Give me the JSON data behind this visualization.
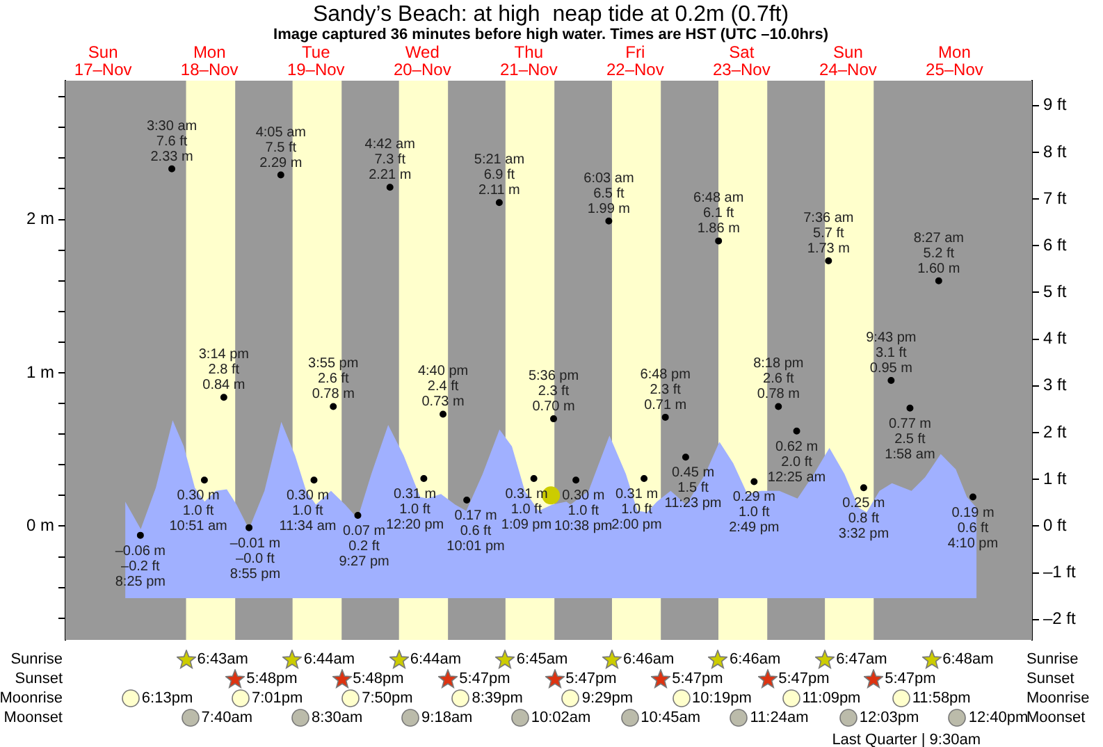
{
  "chart_data": {
    "type": "scatter",
    "title": "Sandy’s Beach: at high  neap tide at 0.2m (0.7ft)",
    "subtitle": "Image captured 36 minutes before high water. Times are HST (UTC –10.0hrs)",
    "xlim": [
      "--11-17T03:30",
      "--11-26T05:30"
    ],
    "xticks": [
      {
        "value": "--11-17T12:00",
        "label": "Sun 17–Nov"
      },
      {
        "value": "--11-18T12:00",
        "label": "Mon 18–Nov"
      },
      {
        "value": "--11-19T12:00",
        "label": "Tue 19–Nov"
      },
      {
        "value": "--11-20T12:00",
        "label": "Wed 20–Nov"
      },
      {
        "value": "--11-21T12:00",
        "label": "Thu 21–Nov"
      },
      {
        "value": "--11-22T12:00",
        "label": "Fri 22–Nov"
      },
      {
        "value": "--11-23T12:00",
        "label": "Sat 23–Nov"
      },
      {
        "value": "--11-24T12:00",
        "label": "Sun 24–Nov"
      },
      {
        "value": "--11-25T12:00",
        "label": "Mon 25–Nov"
      }
    ],
    "ylim": [
      -0.742,
      2.905
    ],
    "yticks": [
      {
        "value": -0.6,
        "label": null
      },
      {
        "value": -0.4,
        "label": null
      },
      {
        "value": -0.2,
        "label": null
      },
      {
        "value": 0,
        "label": "0 m"
      },
      {
        "value": 0.2,
        "label": null
      },
      {
        "value": 0.4,
        "label": null
      },
      {
        "value": 0.6,
        "label": null
      },
      {
        "value": 0.8,
        "label": null
      },
      {
        "value": 1,
        "label": "1 m"
      },
      {
        "value": 1.2,
        "label": null
      },
      {
        "value": 1.4,
        "label": null
      },
      {
        "value": 1.6,
        "label": null
      },
      {
        "value": 1.8,
        "label": null
      },
      {
        "value": 2,
        "label": "2 m"
      },
      {
        "value": 2.2,
        "label": null
      },
      {
        "value": 2.4,
        "label": null
      },
      {
        "value": 2.6,
        "label": null
      },
      {
        "value": 2.8,
        "label": null
      }
    ],
    "y2lim": [
      -2.434,
      9.531
    ],
    "y2ticks": [
      {
        "value": -2,
        "label": "–2 ft"
      },
      {
        "value": -1,
        "label": "–1 ft"
      },
      {
        "value": 0,
        "label": "0 ft"
      },
      {
        "value": 1,
        "label": "1 ft"
      },
      {
        "value": 2,
        "label": "2 ft"
      },
      {
        "value": 3,
        "label": "3 ft"
      },
      {
        "value": 4,
        "label": "4 ft"
      },
      {
        "value": 5,
        "label": "5 ft"
      },
      {
        "value": 6,
        "label": "6 ft"
      },
      {
        "value": 7,
        "label": "7 ft"
      },
      {
        "value": 8,
        "label": "8 ft"
      },
      {
        "value": 9,
        "label": "9 ft"
      }
    ],
    "legend": false,
    "bands": [
      {
        "axis": "x",
        "from": "--11-18T06:43",
        "to": "--11-18T17:48",
        "color": "#ffffcc"
      },
      {
        "axis": "x",
        "from": "--11-19T06:44",
        "to": "--11-19T17:48",
        "color": "#ffffcc"
      },
      {
        "axis": "x",
        "from": "--11-20T06:44",
        "to": "--11-20T17:47",
        "color": "#ffffcc"
      },
      {
        "axis": "x",
        "from": "--11-21T06:45",
        "to": "--11-21T17:47",
        "color": "#ffffcc"
      },
      {
        "axis": "x",
        "from": "--11-22T06:46",
        "to": "--11-22T17:47",
        "color": "#ffffcc"
      },
      {
        "axis": "x",
        "from": "--11-23T06:46",
        "to": "--11-23T17:47",
        "color": "#ffffcc"
      },
      {
        "axis": "x",
        "from": "--11-24T06:47",
        "to": "--11-24T17:47",
        "color": "#ffffcc"
      }
    ],
    "series": [
      {
        "type": "area",
        "color": "#a0b0ff",
        "x": [
          "--11-17T17:00",
          "--11-17T17:00",
          "--11-17T20:30",
          "--11-17T23:54",
          "--11-18T03:42",
          "--11-18T06:12",
          "--11-18T08:42",
          "--11-18T10:54",
          "--11-18T13:24",
          "--11-18T15:54",
          "--11-18T18:06",
          "--11-18T20:54",
          "--11-19T00:24",
          "--11-19T04:12",
          "--11-19T07:18",
          "--11-19T09:48",
          "--11-19T12:00",
          "--11-19T15:24",
          "--11-19T18:36",
          "--11-19T21:24",
          "--11-20T00:30",
          "--11-20T04:18",
          "--11-20T07:48",
          "--11-20T11:30",
          "--11-20T13:06",
          "--11-20T16:12",
          "--11-20T19:24",
          "--11-20T21:54",
          "--11-21T01:36",
          "--11-21T05:24",
          "--11-21T08:12",
          "--11-21T11:06",
          "--11-21T14:12",
          "--11-21T17:18",
          "--11-21T20:30",
          "--11-21T21:24",
          "--11-22T01:30",
          "--11-22T06:12",
          "--11-22T09:54",
          "--11-22T12:30",
          "--11-22T14:42",
          "--11-22T16:54",
          "--11-22T20:00",
          "--11-22T23:30",
          "--11-23T03:48",
          "--11-23T07:00",
          "--11-23T10:06",
          "--11-23T13:18",
          "--11-23T16:24",
          "--11-23T20:30",
          "--11-24T00:36",
          "--11-24T04:18",
          "--11-24T07:48",
          "--11-24T11:12",
          "--11-24T14:24",
          "--11-24T16:12",
          "--11-24T19:06",
          "--11-24T21:54",
          "--11-25T02:18",
          "--11-25T05:24",
          "--11-25T08:54",
          "--11-25T12:18",
          "--11-25T14:48",
          "--11-25T17:00",
          "--11-25T17:00"
        ],
        "values": [
          -0.47,
          0.16,
          -0.02,
          0.25,
          0.69,
          0.52,
          0.25,
          0.16,
          0.23,
          0.24,
          0.14,
          -0.02,
          0.23,
          0.68,
          0.46,
          0.23,
          0.14,
          0.23,
          0.14,
          0.05,
          0.34,
          0.66,
          0.46,
          0.19,
          0.18,
          0.21,
          0.14,
          0.1,
          0.34,
          0.63,
          0.52,
          0.23,
          0.1,
          0.14,
          0.16,
          0.14,
          0.23,
          0.59,
          0.34,
          0.1,
          0.09,
          0.16,
          0.23,
          0.14,
          0.34,
          0.55,
          0.41,
          0.21,
          0.23,
          0.23,
          0.18,
          0.34,
          0.51,
          0.34,
          0.12,
          0.09,
          0.23,
          0.28,
          0.23,
          0.32,
          0.47,
          0.37,
          0.19,
          0.12,
          -0.47
        ]
      },
      {
        "marker": "circle",
        "color": "#000000",
        "x": [
          "--11-17T20:25",
          "--11-18T03:30",
          "--11-18T10:51",
          "--11-18T15:14",
          "--11-18T20:55",
          "--11-19T04:05",
          "--11-19T11:34",
          "--11-19T15:55",
          "--11-19T21:27",
          "--11-20T04:42",
          "--11-20T12:20",
          "--11-20T16:40",
          "--11-20T22:01",
          "--11-21T05:21",
          "--11-21T13:09",
          "--11-21T17:36",
          "--11-21T22:38",
          "--11-22T06:03",
          "--11-22T14:00",
          "--11-22T18:48",
          "--11-22T23:23",
          "--11-23T06:48",
          "--11-23T14:49",
          "--11-23T20:18",
          "--11-24T00:25",
          "--11-24T07:36",
          "--11-24T15:32",
          "--11-24T21:43",
          "--11-25T01:58",
          "--11-25T08:27",
          "--11-25T16:10"
        ],
        "values": [
          -0.06,
          2.33,
          0.3,
          0.84,
          -0.01,
          2.29,
          0.3,
          0.78,
          0.07,
          2.21,
          0.31,
          0.73,
          0.17,
          2.11,
          0.31,
          0.7,
          0.3,
          1.99,
          0.31,
          0.71,
          0.45,
          1.86,
          0.29,
          0.78,
          0.62,
          1.73,
          0.25,
          0.95,
          0.77,
          1.6,
          0.19
        ],
        "value_labels": [
          "–0.06 m\n–0.2 ft\n8:25 pm",
          "3:30 am\n7.6 ft\n2.33 m",
          "0.30 m\n1.0 ft\n10:51 am",
          "3:14 pm\n2.8 ft\n0.84 m",
          "–0.01 m\n–0.0 ft\n8:55 pm",
          "4:05 am\n7.5 ft\n2.29 m",
          "0.30 m\n1.0 ft\n11:34 am",
          "3:55 pm\n2.6 ft\n0.78 m",
          "0.07 m\n0.2 ft\n9:27 pm",
          "4:42 am\n7.3 ft\n2.21 m",
          "0.31 m\n1.0 ft\n12:20 pm",
          "4:40 pm\n2.4 ft\n0.73 m",
          "0.17 m\n0.6 ft\n10:01 pm",
          "5:21 am\n6.9 ft\n2.11 m",
          "0.31 m\n1.0 ft\n1:09 pm",
          "5:36 pm\n2.3 ft\n0.70 m",
          "0.30 m\n1.0 ft\n10:38 pm",
          "6:03 am\n6.5 ft\n1.99 m",
          "0.31 m\n1.0 ft\n2:00 pm",
          "6:48 pm\n2.3 ft\n0.71 m",
          "0.45 m\n1.5 ft\n11:23 pm",
          "6:48 am\n6.1 ft\n1.86 m",
          "0.29 m\n1.0 ft\n2:49 pm",
          "8:18 pm\n2.6 ft\n0.78 m",
          "0.62 m\n2.0 ft\n12:25 am",
          "7:36 am\n5.7 ft\n1.73 m",
          "0.25 m\n0.8 ft\n3:32 pm",
          "9:43 pm\n3.1 ft\n0.95 m",
          "0.77 m\n2.5 ft\n1:58 am",
          "8:27 am\n5.2 ft\n1.60 m",
          "0.19 m\n0.6 ft\n4:10 pm"
        ]
      },
      {
        "marker": "circle",
        "color": "#cccc00",
        "x": [
          "--11-21T17:00"
        ],
        "values": [
          0.2
        ]
      }
    ],
    "annotations": [
      "Sunrise",
      "6:43am",
      "6:44am",
      "6:44am",
      "6:45am",
      "6:46am",
      "6:46am",
      "6:47am",
      "6:48am",
      "Sunrise",
      "Sunset",
      "5:48pm",
      "5:48pm",
      "5:47pm",
      "5:47pm",
      "5:47pm",
      "5:47pm",
      "5:47pm",
      "Sunset",
      "Moonrise",
      "6:13pm",
      "7:01pm",
      "7:50pm",
      "8:39pm",
      "9:29pm",
      "10:19pm",
      "11:09pm",
      "11:58pm",
      "Moonrise",
      "Moonset",
      "7:40am",
      "8:30am",
      "9:18am",
      "10:02am",
      "10:45am",
      "11:24am",
      "12:03pm",
      "12:40pm",
      "Moonset",
      "Last Quarter | 9:30am"
    ]
  }
}
